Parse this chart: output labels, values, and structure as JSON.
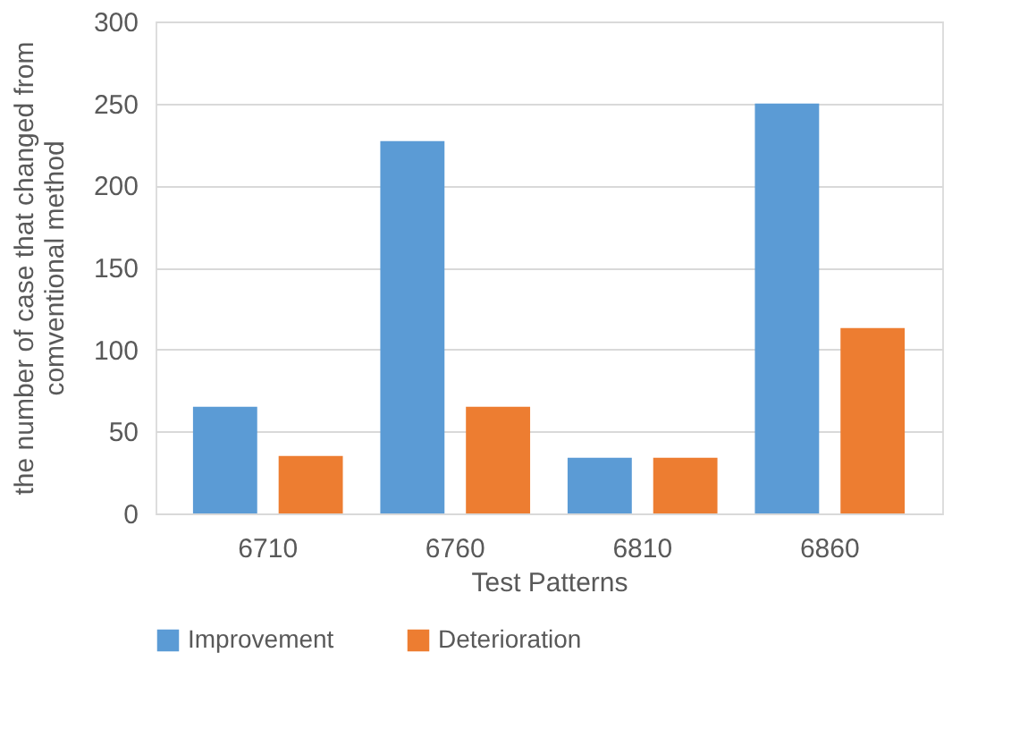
{
  "chart_data": {
    "type": "bar",
    "categories": [
      "6710",
      "6760",
      "6810",
      "6860"
    ],
    "xlabel": "Test Patterns",
    "ylabel": "the number of  case that changed from\ncomventional method",
    "series": [
      {
        "name": "Improvement",
        "color": "#5b9bd5",
        "values": [
          65,
          227,
          34,
          250
        ]
      },
      {
        "name": "Deterioration",
        "color": "#ed7d31",
        "values": [
          35,
          65,
          34,
          113
        ]
      }
    ],
    "ylim": [
      0,
      300
    ],
    "yticks": [
      0,
      50,
      100,
      150,
      200,
      250,
      300
    ],
    "grid": "y",
    "legend": "bottom"
  }
}
